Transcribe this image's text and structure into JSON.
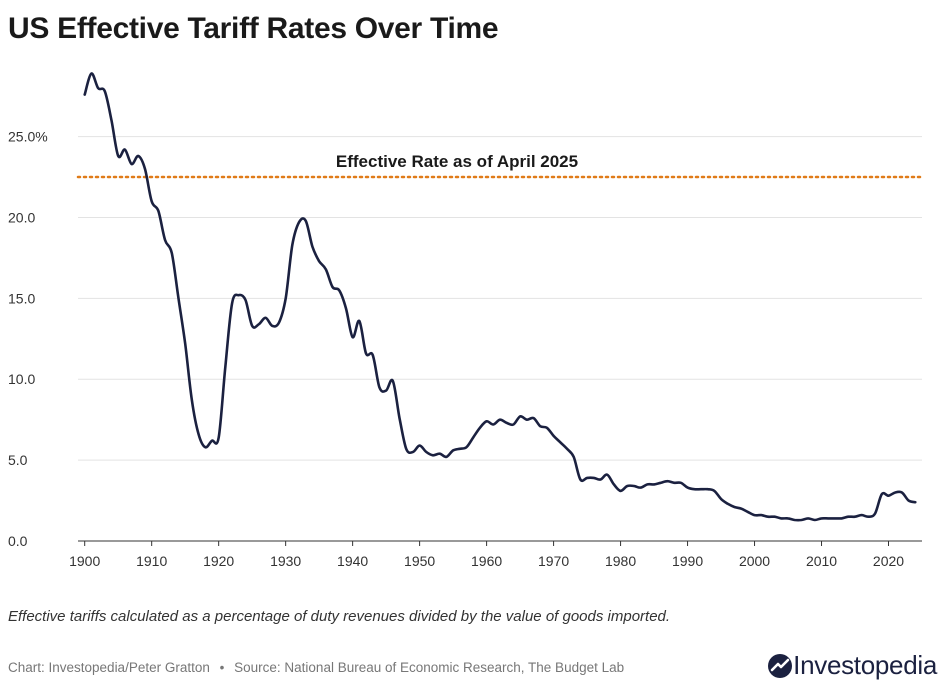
{
  "chart_data": {
    "type": "line",
    "title": "US Effective Tariff Rates Over Time",
    "xlabel": "",
    "ylabel": "",
    "xlim": [
      1899,
      2025
    ],
    "ylim": [
      0,
      28.5
    ],
    "x_ticks": [
      "1900",
      "1910",
      "1920",
      "1930",
      "1940",
      "1950",
      "1960",
      "1970",
      "1980",
      "1990",
      "2000",
      "2010",
      "2020"
    ],
    "y_ticks": [
      "0.0",
      "5.0",
      "10.0",
      "15.0",
      "20.0",
      "25.0%"
    ],
    "grid": true,
    "series": [
      {
        "name": "",
        "color": "#1b2140",
        "x": [
          1900,
          1901,
          1902,
          1903,
          1904,
          1905,
          1906,
          1907,
          1908,
          1909,
          1910,
          1911,
          1912,
          1913,
          1914,
          1915,
          1916,
          1917,
          1918,
          1919,
          1920,
          1921,
          1922,
          1923,
          1924,
          1925,
          1926,
          1927,
          1928,
          1929,
          1930,
          1931,
          1932,
          1933,
          1934,
          1935,
          1936,
          1937,
          1938,
          1939,
          1940,
          1941,
          1942,
          1943,
          1944,
          1945,
          1946,
          1947,
          1948,
          1949,
          1950,
          1951,
          1952,
          1953,
          1954,
          1955,
          1956,
          1957,
          1958,
          1959,
          1960,
          1961,
          1962,
          1963,
          1964,
          1965,
          1966,
          1967,
          1968,
          1969,
          1970,
          1971,
          1972,
          1973,
          1974,
          1975,
          1976,
          1977,
          1978,
          1979,
          1980,
          1981,
          1982,
          1983,
          1984,
          1985,
          1986,
          1987,
          1988,
          1989,
          1990,
          1991,
          1992,
          1993,
          1994,
          1995,
          1996,
          1997,
          1998,
          1999,
          2000,
          2001,
          2002,
          2003,
          2004,
          2005,
          2006,
          2007,
          2008,
          2009,
          2010,
          2011,
          2012,
          2013,
          2014,
          2015,
          2016,
          2017,
          2018,
          2019,
          2020,
          2021,
          2022,
          2023,
          2024
        ],
        "values": [
          27.6,
          28.9,
          28.0,
          27.8,
          26.0,
          23.8,
          24.2,
          23.3,
          23.8,
          23.0,
          21.0,
          20.4,
          18.6,
          17.8,
          15.0,
          12.2,
          8.7,
          6.6,
          5.8,
          6.2,
          6.4,
          10.8,
          14.7,
          15.2,
          14.9,
          13.3,
          13.4,
          13.8,
          13.3,
          13.5,
          15.0,
          18.3,
          19.7,
          19.8,
          18.2,
          17.3,
          16.8,
          15.7,
          15.5,
          14.4,
          12.6,
          13.6,
          11.6,
          11.5,
          9.5,
          9.3,
          9.9,
          7.6,
          5.7,
          5.5,
          5.9,
          5.5,
          5.3,
          5.4,
          5.2,
          5.6,
          5.7,
          5.8,
          6.4,
          7.0,
          7.4,
          7.2,
          7.5,
          7.3,
          7.2,
          7.7,
          7.5,
          7.6,
          7.1,
          7.0,
          6.5,
          6.1,
          5.7,
          5.2,
          3.8,
          3.9,
          3.9,
          3.8,
          4.1,
          3.5,
          3.1,
          3.4,
          3.4,
          3.3,
          3.5,
          3.5,
          3.6,
          3.7,
          3.6,
          3.6,
          3.3,
          3.2,
          3.2,
          3.2,
          3.1,
          2.6,
          2.3,
          2.1,
          2.0,
          1.8,
          1.6,
          1.6,
          1.5,
          1.5,
          1.4,
          1.4,
          1.3,
          1.3,
          1.4,
          1.3,
          1.4,
          1.4,
          1.4,
          1.4,
          1.5,
          1.5,
          1.6,
          1.5,
          1.7,
          2.9,
          2.8,
          3.0,
          3.0,
          2.5,
          2.4
        ]
      }
    ],
    "reference_line": {
      "value": 22.5,
      "label": "Effective Rate as of April 2025",
      "color": "#e07b18"
    }
  },
  "note": "Effective tariffs calculated as a percentage of duty revenues divided by the value of goods imported.",
  "footer": {
    "chart_credit": "Chart: Investopedia/Peter Gratton",
    "separator": "•",
    "source": "Source: National Bureau of Economic Research, The Budget Lab"
  },
  "logo": {
    "text": "Investopedia"
  }
}
